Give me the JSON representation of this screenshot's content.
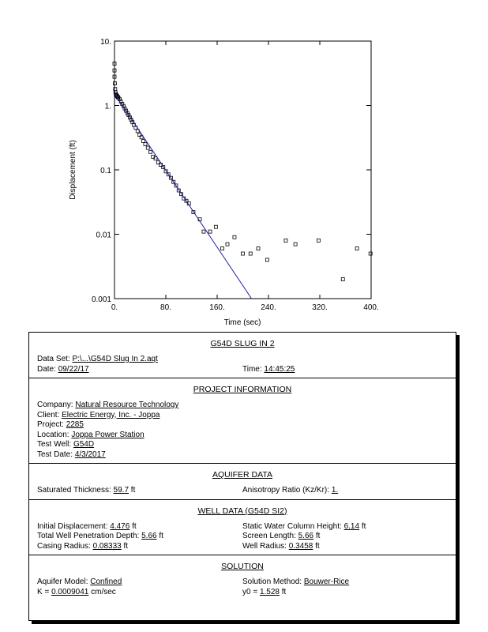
{
  "chart_data": {
    "type": "scatter",
    "y_label": "Displacement (ft)",
    "x_label": "Time (sec)",
    "log_y": true,
    "xlim": [
      0,
      400
    ],
    "ylim": [
      0.001,
      10
    ],
    "xticks": [
      {
        "value": 0,
        "label": "0."
      },
      {
        "value": 80,
        "label": "80."
      },
      {
        "value": 160,
        "label": "160."
      },
      {
        "value": 240,
        "label": "240."
      },
      {
        "value": 320,
        "label": "320."
      },
      {
        "value": 400,
        "label": "400."
      }
    ],
    "yticks": [
      {
        "value": 0.001,
        "label": "0.001"
      },
      0.01,
      0.1,
      {
        "value": 1,
        "label": "1."
      },
      {
        "value": 10,
        "label": "10."
      }
    ],
    "series": [
      {
        "kind": "points",
        "color": "#000000",
        "x": [
          0,
          0,
          0,
          0.5,
          1,
          1.5,
          2,
          3,
          4,
          5,
          6,
          8,
          10,
          12,
          14,
          16,
          18,
          20,
          22,
          24,
          26,
          28,
          30,
          33,
          36,
          39,
          42,
          45,
          48,
          52,
          56,
          60,
          64,
          68,
          72,
          76,
          80,
          84,
          88,
          92,
          96,
          100,
          104,
          108,
          112,
          116,
          123,
          133,
          139,
          149,
          158,
          168,
          176,
          187,
          200,
          212,
          224,
          238,
          267,
          282,
          318,
          356,
          378,
          399
        ],
        "values": [
          4.476,
          3.5,
          2.8,
          2.2,
          1.8,
          1.6,
          1.5,
          1.45,
          1.4,
          1.36,
          1.32,
          1.25,
          1.15,
          1.06,
          0.98,
          0.9,
          0.83,
          0.76,
          0.71,
          0.65,
          0.6,
          0.55,
          0.5,
          0.45,
          0.4,
          0.35,
          0.32,
          0.28,
          0.25,
          0.22,
          0.19,
          0.16,
          0.15,
          0.13,
          0.12,
          0.11,
          0.095,
          0.085,
          0.075,
          0.065,
          0.057,
          0.048,
          0.042,
          0.036,
          0.033,
          0.03,
          0.022,
          0.017,
          0.011,
          0.011,
          0.013,
          0.006,
          0.007,
          0.009,
          0.005,
          0.005,
          0.006,
          0.004,
          0.008,
          0.007,
          0.008,
          0.002,
          0.006,
          0.005
        ]
      },
      {
        "kind": "line",
        "color": "#1a1aa8",
        "x": [
          0,
          213.6
        ],
        "values": [
          1.528,
          0.001
        ]
      }
    ]
  },
  "report": {
    "title": "G54D SLUG IN 2",
    "rows": [
      [
        {
          "label": "Data Set:",
          "value": "P:\\...\\G54D Slug In 2.aqt"
        }
      ],
      [
        {
          "label": "Date:",
          "value": "09/22/17"
        },
        {
          "label": "Time:",
          "value": "14:45:25"
        }
      ]
    ],
    "sections": [
      {
        "heading": "PROJECT INFORMATION",
        "rows": [
          [
            {
              "label": "Company:",
              "value": "Natural Resource Technology"
            }
          ],
          [
            {
              "label": "Client:",
              "value": "Electric Energy, Inc. - Joppa"
            }
          ],
          [
            {
              "label": "Project:",
              "value": "2285"
            }
          ],
          [
            {
              "label": "Location:",
              "value": "Joppa Power Station"
            }
          ],
          [
            {
              "label": "Test Well:",
              "value": "G54D"
            }
          ],
          [
            {
              "label": "Test Date:",
              "value": "4/3/2017"
            }
          ]
        ]
      },
      {
        "heading": "AQUIFER DATA",
        "rows": [
          [
            {
              "label": "Saturated Thickness:",
              "value": "59.7",
              "unit": "ft"
            },
            {
              "label": "Anisotropy Ratio (Kz/Kr):",
              "value": "1."
            }
          ]
        ]
      },
      {
        "heading": "WELL DATA (G54D SI2)",
        "rows": [
          [
            {
              "label": "Initial Displacement:",
              "value": "4.476",
              "unit": "ft"
            },
            {
              "label": "Static Water Column Height:",
              "value": "6.14",
              "unit": "ft"
            }
          ],
          [
            {
              "label": "Total Well Penetration Depth:",
              "value": "5.66",
              "unit": "ft"
            },
            {
              "label": "Screen Length:",
              "value": "5.66",
              "unit": "ft"
            }
          ],
          [
            {
              "label": "Casing Radius:",
              "value": "0.08333",
              "unit": "ft"
            },
            {
              "label": "Well Radius:",
              "value": "0.3458",
              "unit": "ft"
            }
          ]
        ]
      },
      {
        "heading": "SOLUTION",
        "rows": [
          [
            {
              "label": "Aquifer Model:",
              "value": "Confined"
            },
            {
              "label": "Solution Method:",
              "value": "Bouwer-Rice"
            }
          ],
          [
            {
              "label": "K =",
              "value": "0.0009041",
              "unit": "cm/sec"
            },
            {
              "label": "y0 =",
              "value": "1.528",
              "unit": "ft"
            }
          ]
        ]
      }
    ]
  }
}
